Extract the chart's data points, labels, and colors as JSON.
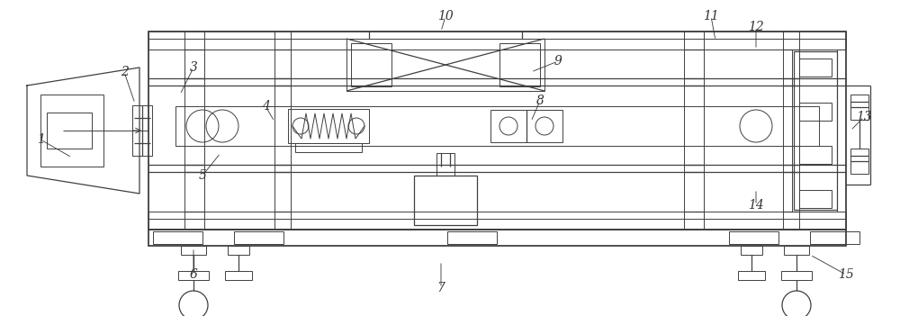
{
  "background_color": "#ffffff",
  "line_color": "#404040",
  "label_color": "#333333",
  "fig_width": 10.0,
  "fig_height": 3.51,
  "dpi": 100
}
